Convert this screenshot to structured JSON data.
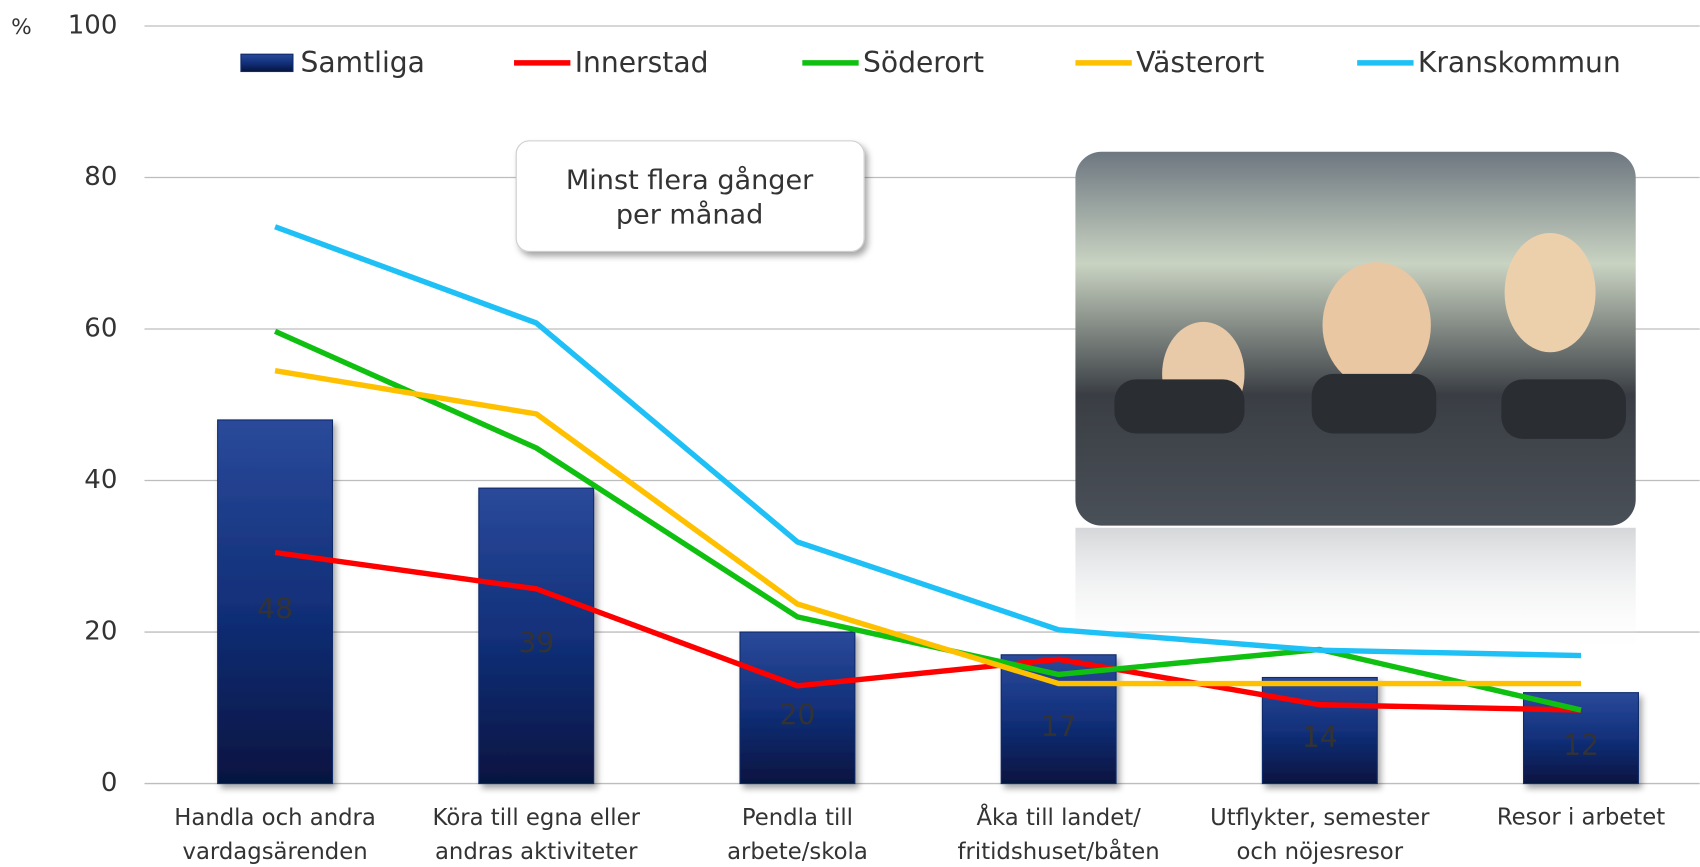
{
  "chart_data": {
    "type": "bar-line",
    "unit_label": "%",
    "annotation": "Minst flera gånger\nper månad",
    "categories": [
      "Handla och andra\nvardagsärenden",
      "Köra till egna eller\nandras aktiviteter",
      "Pendla till\narbete/skola",
      "Åka till landet/\nfritidshuset/båten",
      "Utflykter, semester\noch nöjesresor",
      "Resor i arbetet"
    ],
    "series": [
      {
        "name": "Samtliga",
        "type": "bar",
        "color": "#102a6b",
        "values": [
          48,
          39,
          20,
          17,
          14,
          12
        ]
      },
      {
        "name": "Innerstad",
        "type": "line",
        "color": "#ff0000",
        "values": [
          30.5,
          25.7,
          12.9,
          16.4,
          10.4,
          9.7
        ]
      },
      {
        "name": "Söderort",
        "type": "line",
        "color": "#10c010",
        "values": [
          59.7,
          44.3,
          22.0,
          14.4,
          17.7,
          9.7
        ]
      },
      {
        "name": "Västerort",
        "type": "line",
        "color": "#ffc000",
        "values": [
          54.5,
          48.8,
          23.7,
          13.2,
          13.2,
          13.2
        ]
      },
      {
        "name": "Kranskommun",
        "type": "line",
        "color": "#1ec0f5",
        "values": [
          73.5,
          60.8,
          31.9,
          20.3,
          17.6,
          16.9
        ]
      }
    ],
    "ylim": [
      0,
      100
    ],
    "yticks": [
      0,
      20,
      40,
      60,
      80,
      100
    ],
    "grid": true
  }
}
